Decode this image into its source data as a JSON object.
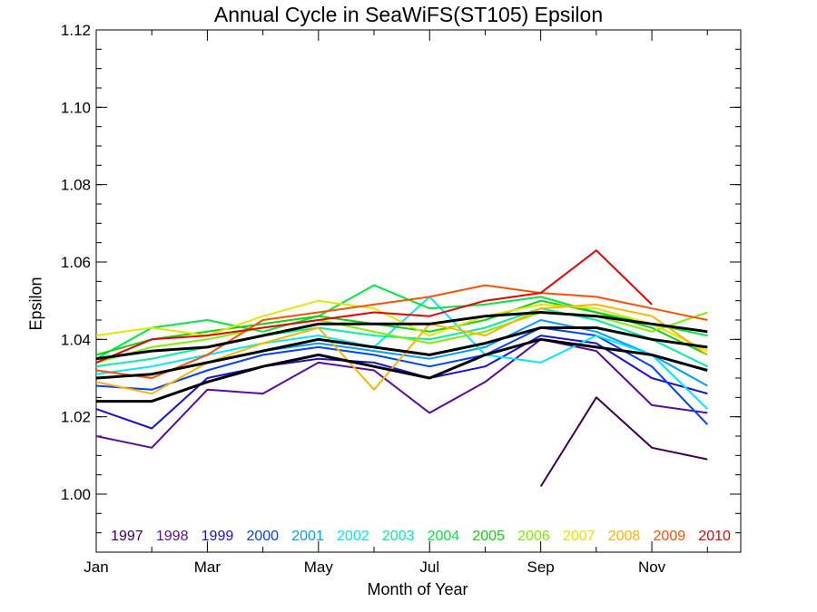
{
  "chart_data": {
    "type": "line",
    "title": "Annual Cycle in SeaWiFS(ST105) Epsilon",
    "xlabel": "Month of Year",
    "ylabel": "Epsilon",
    "xlim": [
      1,
      12.6
    ],
    "ylim": [
      0.985,
      1.12
    ],
    "x_ticks": [
      {
        "value": 1,
        "label": "Jan"
      },
      {
        "value": 3,
        "label": "Mar"
      },
      {
        "value": 5,
        "label": "May"
      },
      {
        "value": 7,
        "label": "Jul"
      },
      {
        "value": 9,
        "label": "Sep"
      },
      {
        "value": 11,
        "label": "Nov"
      }
    ],
    "y_ticks": [
      1.0,
      1.02,
      1.04,
      1.06,
      1.08,
      1.1,
      1.12
    ],
    "grid": false,
    "legend_position": "bottom, inside plot",
    "x": [
      1,
      2,
      3,
      4,
      5,
      6,
      7,
      8,
      9,
      10,
      11,
      12
    ],
    "series": [
      {
        "name": "1997",
        "color": "#3c0050",
        "values": [
          null,
          null,
          null,
          null,
          null,
          null,
          null,
          null,
          1.002,
          1.025,
          1.012,
          1.009
        ]
      },
      {
        "name": "1998",
        "color": "#5a0aa0",
        "values": [
          1.015,
          1.012,
          1.027,
          1.026,
          1.034,
          1.032,
          1.021,
          1.029,
          1.04,
          1.037,
          1.023,
          1.021
        ]
      },
      {
        "name": "1999",
        "color": "#1a10d0",
        "values": [
          1.022,
          1.017,
          1.03,
          1.033,
          1.035,
          1.034,
          1.03,
          1.033,
          1.041,
          1.039,
          1.03,
          1.026
        ]
      },
      {
        "name": "2000",
        "color": "#0040ff",
        "values": [
          1.028,
          1.027,
          1.032,
          1.036,
          1.038,
          1.036,
          1.033,
          1.036,
          1.043,
          1.041,
          1.033,
          1.018
        ]
      },
      {
        "name": "2001",
        "color": "#009cff",
        "values": [
          1.03,
          1.031,
          1.034,
          1.037,
          1.039,
          1.037,
          1.035,
          1.038,
          1.045,
          1.042,
          1.036,
          1.028
        ]
      },
      {
        "name": "2002",
        "color": "#00e8ff",
        "values": [
          1.031,
          1.033,
          1.036,
          1.039,
          1.041,
          1.038,
          1.051,
          1.036,
          1.034,
          1.041,
          1.036,
          1.022
        ]
      },
      {
        "name": "2003",
        "color": "#00f0a0",
        "values": [
          1.033,
          1.035,
          1.038,
          1.041,
          1.043,
          1.041,
          1.04,
          1.043,
          1.048,
          1.045,
          1.04,
          1.033
        ]
      },
      {
        "name": "2004",
        "color": "#00e840",
        "values": [
          1.035,
          1.043,
          1.045,
          1.042,
          1.046,
          1.054,
          1.048,
          1.049,
          1.051,
          1.047,
          1.044,
          1.041
        ]
      },
      {
        "name": "2005",
        "color": "#10d010",
        "values": [
          1.036,
          1.04,
          1.042,
          1.044,
          1.046,
          1.044,
          1.042,
          1.045,
          1.05,
          1.047,
          1.043,
          1.036
        ]
      },
      {
        "name": "2006",
        "color": "#7cf000",
        "values": [
          1.034,
          1.038,
          1.04,
          1.043,
          1.045,
          1.042,
          1.039,
          1.042,
          1.047,
          1.046,
          1.042,
          1.047
        ]
      },
      {
        "name": "2007",
        "color": "#e0e800",
        "values": [
          1.041,
          1.043,
          1.041,
          1.046,
          1.05,
          1.048,
          1.041,
          1.046,
          1.049,
          1.048,
          1.044,
          1.037
        ]
      },
      {
        "name": "2008",
        "color": "#ffb400",
        "values": [
          1.029,
          1.026,
          1.034,
          1.039,
          1.043,
          1.027,
          1.044,
          1.041,
          1.048,
          1.049,
          1.046,
          1.036
        ]
      },
      {
        "name": "2009",
        "color": "#ff5000",
        "values": [
          1.032,
          1.03,
          1.036,
          1.045,
          1.047,
          1.049,
          1.051,
          1.054,
          1.052,
          1.051,
          1.048,
          1.045
        ]
      },
      {
        "name": "2010",
        "color": "#e80000",
        "values": [
          1.034,
          1.04,
          1.041,
          1.043,
          1.045,
          1.047,
          1.046,
          1.05,
          1.052,
          1.063,
          1.049,
          null
        ]
      }
    ],
    "mean_lines": [
      {
        "color": "#000000",
        "values": [
          1.035,
          1.037,
          1.038,
          1.041,
          1.044,
          1.044,
          1.044,
          1.046,
          1.047,
          1.046,
          1.044,
          1.042
        ]
      },
      {
        "color": "#000000",
        "values": [
          1.03,
          1.031,
          1.034,
          1.037,
          1.04,
          1.038,
          1.036,
          1.039,
          1.043,
          1.043,
          1.04,
          1.038
        ]
      },
      {
        "color": "#000000",
        "values": [
          1.024,
          1.024,
          1.029,
          1.033,
          1.036,
          1.033,
          1.03,
          1.036,
          1.04,
          1.038,
          1.036,
          1.032
        ]
      }
    ]
  }
}
